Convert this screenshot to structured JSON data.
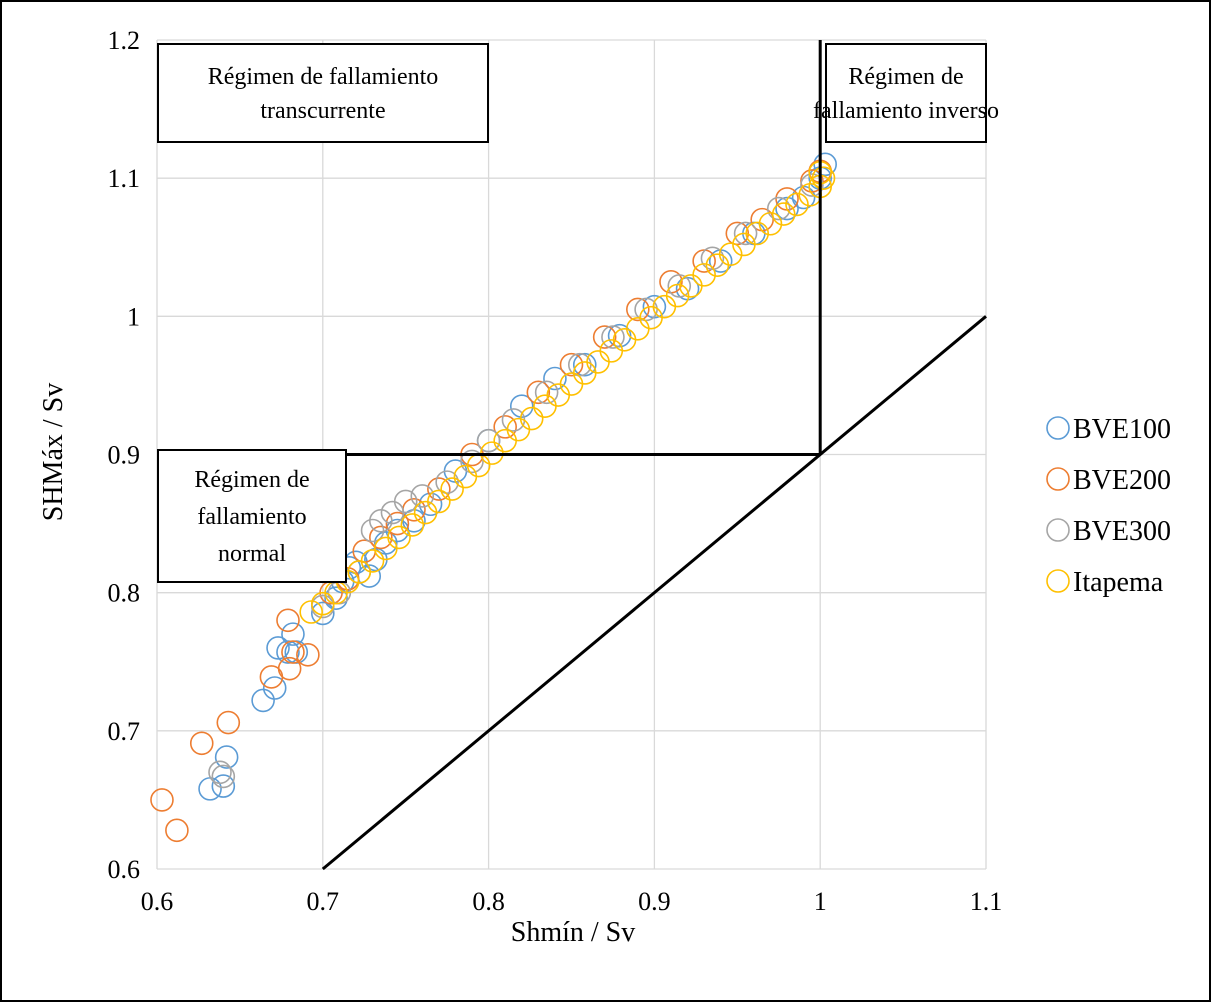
{
  "chart_data": {
    "type": "scatter",
    "xlabel": "Shmín / Sv",
    "ylabel": "SHMáx / Sv",
    "xlim": [
      0.6,
      1.1
    ],
    "ylim": [
      0.6,
      1.2
    ],
    "x_ticks": [
      "0.6",
      "0.7",
      "0.8",
      "0.9",
      "1",
      "1.1"
    ],
    "y_ticks": [
      "0.6",
      "0.7",
      "0.8",
      "0.9",
      "1",
      "1.1",
      "1.2"
    ],
    "grid": true,
    "legend_position": "right",
    "annotations": [
      {
        "lines": [
          "Régimen de fallamiento",
          "transcurrente"
        ]
      },
      {
        "lines": [
          "Régimen de",
          "fallamiento inverso"
        ]
      },
      {
        "lines": [
          "Régimen de",
          "fallamiento",
          "normal"
        ]
      }
    ],
    "reference_lines": [
      {
        "points": [
          [
            0.6,
            0.9
          ],
          [
            1.0,
            0.9
          ]
        ]
      },
      {
        "points": [
          [
            1.0,
            0.9
          ],
          [
            1.0,
            1.2
          ]
        ]
      },
      {
        "points": [
          [
            0.7,
            0.6
          ],
          [
            1.1,
            1.0
          ]
        ]
      }
    ],
    "series": [
      {
        "name": "BVE100",
        "color": "#5b9bd5",
        "points": [
          [
            0.632,
            0.658
          ],
          [
            0.64,
            0.66
          ],
          [
            0.642,
            0.681
          ],
          [
            0.664,
            0.722
          ],
          [
            0.671,
            0.731
          ],
          [
            0.673,
            0.76
          ],
          [
            0.679,
            0.757
          ],
          [
            0.682,
            0.77
          ],
          [
            0.684,
            0.757
          ],
          [
            0.7,
            0.785
          ],
          [
            0.708,
            0.796
          ],
          [
            0.712,
            0.808
          ],
          [
            0.716,
            0.818
          ],
          [
            0.72,
            0.822
          ],
          [
            0.728,
            0.812
          ],
          [
            0.732,
            0.824
          ],
          [
            0.738,
            0.836
          ],
          [
            0.745,
            0.845
          ],
          [
            0.755,
            0.852
          ],
          [
            0.765,
            0.864
          ],
          [
            0.78,
            0.888
          ],
          [
            0.8,
            0.91
          ],
          [
            0.82,
            0.935
          ],
          [
            0.84,
            0.955
          ],
          [
            0.858,
            0.965
          ],
          [
            0.879,
            0.986
          ],
          [
            0.9,
            1.007
          ],
          [
            0.92,
            1.02
          ],
          [
            0.94,
            1.04
          ],
          [
            0.96,
            1.06
          ],
          [
            0.98,
            1.078
          ],
          [
            0.99,
            1.086
          ],
          [
            1.0,
            1.1
          ],
          [
            1.003,
            1.11
          ]
        ]
      },
      {
        "name": "BVE200",
        "color": "#ed7d31",
        "points": [
          [
            0.603,
            0.65
          ],
          [
            0.612,
            0.628
          ],
          [
            0.627,
            0.691
          ],
          [
            0.643,
            0.706
          ],
          [
            0.669,
            0.739
          ],
          [
            0.68,
            0.745
          ],
          [
            0.679,
            0.78
          ],
          [
            0.682,
            0.757
          ],
          [
            0.691,
            0.755
          ],
          [
            0.705,
            0.8
          ],
          [
            0.715,
            0.81
          ],
          [
            0.725,
            0.83
          ],
          [
            0.735,
            0.84
          ],
          [
            0.745,
            0.85
          ],
          [
            0.755,
            0.86
          ],
          [
            0.77,
            0.875
          ],
          [
            0.79,
            0.9
          ],
          [
            0.81,
            0.92
          ],
          [
            0.83,
            0.945
          ],
          [
            0.85,
            0.965
          ],
          [
            0.87,
            0.985
          ],
          [
            0.89,
            1.005
          ],
          [
            0.91,
            1.025
          ],
          [
            0.93,
            1.04
          ],
          [
            0.95,
            1.06
          ],
          [
            0.965,
            1.07
          ],
          [
            0.98,
            1.085
          ],
          [
            0.995,
            1.098
          ],
          [
            1.0,
            1.105
          ]
        ]
      },
      {
        "name": "BVE300",
        "color": "#a5a5a5",
        "points": [
          [
            0.638,
            0.67
          ],
          [
            0.64,
            0.667
          ],
          [
            0.7,
            0.79
          ],
          [
            0.71,
            0.8
          ],
          [
            0.722,
            0.815
          ],
          [
            0.73,
            0.845
          ],
          [
            0.735,
            0.852
          ],
          [
            0.742,
            0.858
          ],
          [
            0.75,
            0.866
          ],
          [
            0.76,
            0.87
          ],
          [
            0.775,
            0.88
          ],
          [
            0.79,
            0.895
          ],
          [
            0.8,
            0.91
          ],
          [
            0.815,
            0.925
          ],
          [
            0.835,
            0.945
          ],
          [
            0.855,
            0.965
          ],
          [
            0.875,
            0.985
          ],
          [
            0.895,
            1.005
          ],
          [
            0.915,
            1.022
          ],
          [
            0.935,
            1.042
          ],
          [
            0.955,
            1.06
          ],
          [
            0.975,
            1.078
          ],
          [
            0.995,
            1.095
          ]
        ]
      },
      {
        "name": "Itapema",
        "color": "#ffc000",
        "points": [
          [
            0.693,
            0.786
          ],
          [
            0.7,
            0.792
          ],
          [
            0.708,
            0.8
          ],
          [
            0.715,
            0.808
          ],
          [
            0.722,
            0.815
          ],
          [
            0.73,
            0.823
          ],
          [
            0.738,
            0.832
          ],
          [
            0.746,
            0.84
          ],
          [
            0.754,
            0.849
          ],
          [
            0.762,
            0.858
          ],
          [
            0.77,
            0.866
          ],
          [
            0.778,
            0.875
          ],
          [
            0.786,
            0.884
          ],
          [
            0.794,
            0.892
          ],
          [
            0.802,
            0.901
          ],
          [
            0.81,
            0.91
          ],
          [
            0.818,
            0.918
          ],
          [
            0.826,
            0.926
          ],
          [
            0.834,
            0.935
          ],
          [
            0.842,
            0.943
          ],
          [
            0.85,
            0.951
          ],
          [
            0.858,
            0.959
          ],
          [
            0.866,
            0.967
          ],
          [
            0.874,
            0.975
          ],
          [
            0.882,
            0.983
          ],
          [
            0.89,
            0.991
          ],
          [
            0.898,
            0.999
          ],
          [
            0.906,
            1.007
          ],
          [
            0.914,
            1.015
          ],
          [
            0.922,
            1.022
          ],
          [
            0.93,
            1.03
          ],
          [
            0.938,
            1.037
          ],
          [
            0.946,
            1.045
          ],
          [
            0.954,
            1.052
          ],
          [
            0.962,
            1.06
          ],
          [
            0.97,
            1.067
          ],
          [
            0.978,
            1.074
          ],
          [
            0.986,
            1.081
          ],
          [
            0.994,
            1.088
          ],
          [
            1.0,
            1.094
          ],
          [
            1.002,
            1.1
          ],
          [
            1.0,
            1.104
          ]
        ]
      }
    ]
  }
}
